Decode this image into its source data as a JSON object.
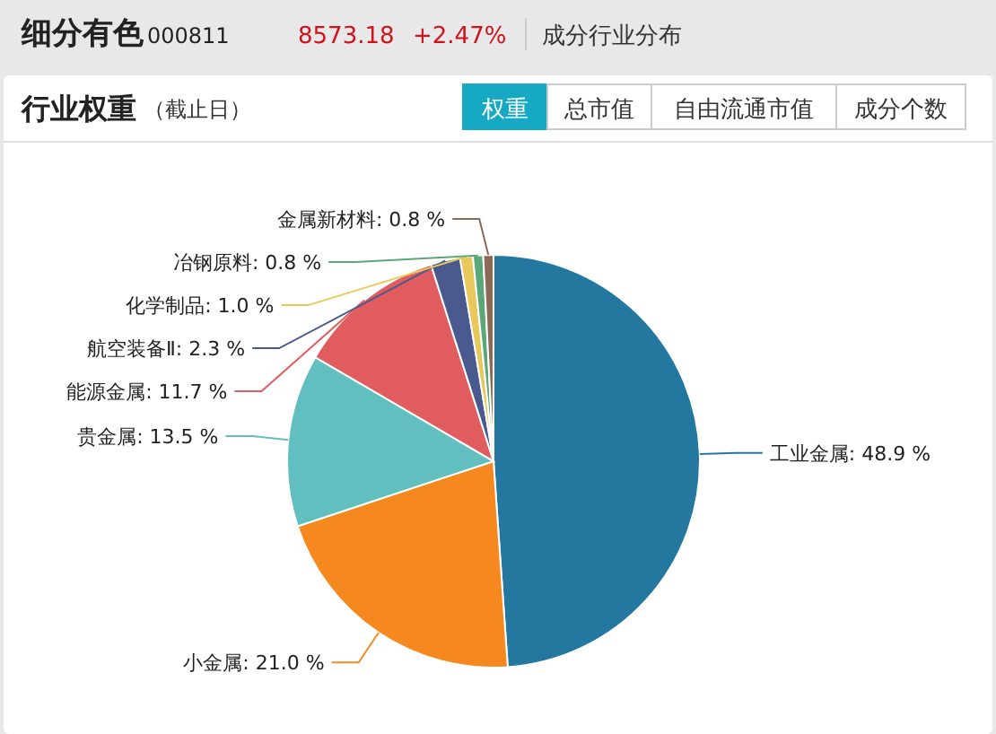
{
  "chart_data": {
    "type": "pie",
    "title": "行业权重",
    "subtitle": "（截止日）",
    "annotations": [
      "细分有色",
      "000811",
      "8573.18",
      "+2.47%",
      "成分行业分布",
      "权重",
      "总市值",
      "自由流通市值",
      "成分个数"
    ],
    "categories": [
      "工业金属",
      "小金属",
      "贵金属",
      "能源金属",
      "航空装备Ⅱ",
      "化学制品",
      "冶钢原料",
      "金属新材料"
    ],
    "values": [
      48.9,
      21.0,
      13.5,
      11.7,
      2.3,
      1.0,
      0.8,
      0.8
    ],
    "value_labels": [
      "48.9 %",
      "21.0 %",
      "13.5 %",
      "11.7 %",
      "2.3 %",
      "1.0 %",
      "0.8 %",
      "0.8 %"
    ],
    "colors": [
      "#24779f",
      "#f5891f",
      "#62bfbf",
      "#e05c5f",
      "#4b5a8e",
      "#e8c85a",
      "#5aa877",
      "#8c6a55"
    ],
    "legend": false
  }
}
